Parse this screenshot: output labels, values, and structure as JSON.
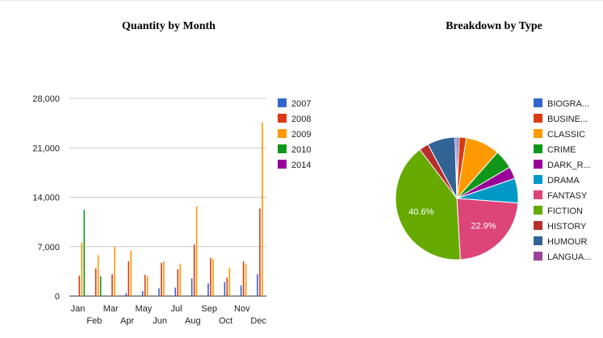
{
  "chart_data": [
    {
      "type": "bar",
      "title": "Quantity by Month",
      "categories": [
        "Jan",
        "Feb",
        "Mar",
        "Apr",
        "May",
        "Jun",
        "Jul",
        "Aug",
        "Sep",
        "Oct",
        "Nov",
        "Dec"
      ],
      "y_tick_labels": [
        "0",
        "7,000",
        "14,000",
        "21,000",
        "28,000"
      ],
      "ylim": [
        0,
        28000
      ],
      "grid": true,
      "legend_position": "right",
      "series": [
        {
          "name": "2007",
          "color": "#3366cc",
          "values": [
            0,
            0,
            0,
            400,
            700,
            1100,
            1200,
            2500,
            1800,
            2000,
            1500,
            3100
          ]
        },
        {
          "name": "2008",
          "color": "#dc3912",
          "values": [
            2900,
            3900,
            3100,
            4900,
            3000,
            4700,
            3800,
            7300,
            5400,
            2600,
            4900,
            12400
          ]
        },
        {
          "name": "2009",
          "color": "#ff9900",
          "values": [
            7600,
            5800,
            7000,
            6400,
            2800,
            4900,
            4600,
            12700,
            5300,
            4000,
            4500,
            24600
          ]
        },
        {
          "name": "2010",
          "color": "#109618",
          "values": [
            12200,
            2800,
            0,
            0,
            0,
            0,
            0,
            0,
            0,
            0,
            0,
            0
          ]
        },
        {
          "name": "2014",
          "color": "#990099",
          "values": [
            0,
            0,
            0,
            0,
            0,
            0,
            0,
            0,
            0,
            0,
            0,
            0
          ]
        }
      ]
    },
    {
      "type": "pie",
      "title": "Breakdown by Type",
      "legend_position": "right",
      "slices": [
        {
          "label": "BIOGRA...",
          "color": "#3366cc",
          "value": 0.6
        },
        {
          "label": "BUSINE...",
          "color": "#dc3912",
          "value": 1.9
        },
        {
          "label": "CLASSIC",
          "color": "#ff9900",
          "value": 9.0
        },
        {
          "label": "CRIME",
          "color": "#109618",
          "value": 5.0
        },
        {
          "label": "DARK_R...",
          "color": "#990099",
          "value": 3.2
        },
        {
          "label": "DRAMA",
          "color": "#0099c6",
          "value": 6.5
        },
        {
          "label": "FANTASY",
          "color": "#dd4477",
          "value": 22.9,
          "shown_label": "22.9%"
        },
        {
          "label": "FICTION",
          "color": "#66aa00",
          "value": 40.6,
          "shown_label": "40.6%"
        },
        {
          "label": "HISTORY",
          "color": "#b82e2e",
          "value": 2.5
        },
        {
          "label": "HUMOUR",
          "color": "#316395",
          "value": 7.3
        },
        {
          "label": "LANGUA...",
          "color": "#994499",
          "value": 0.5
        }
      ]
    }
  ]
}
